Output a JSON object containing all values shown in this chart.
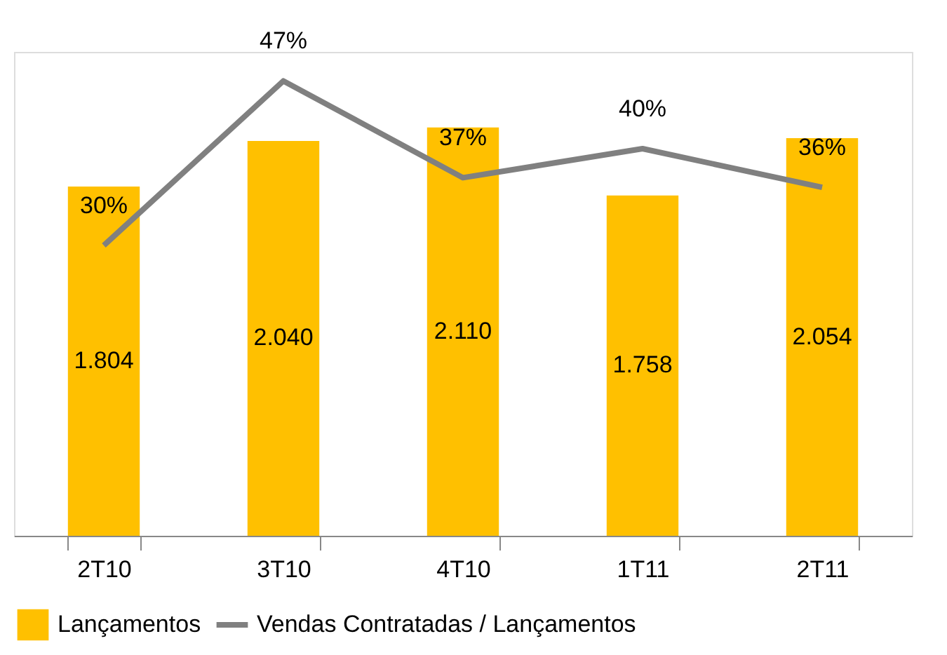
{
  "chart_data": {
    "type": "bar",
    "categories": [
      "2T10",
      "3T10",
      "4T10",
      "1T11",
      "2T11"
    ],
    "series": [
      {
        "name": "Lançamentos",
        "color": "#ffc000",
        "values": [
          1804,
          2040,
          2110,
          1758,
          2054
        ],
        "value_labels": [
          "1.804",
          "2.040",
          "2.110",
          "1.758",
          "2.054"
        ]
      },
      {
        "name": "Vendas Contratadas / Lançamentos",
        "type": "line",
        "axis": "y2",
        "color": "#808080",
        "values": [
          30,
          47,
          37,
          40,
          36
        ],
        "value_labels": [
          "30%",
          "47%",
          "37%",
          "40%",
          "36%"
        ]
      }
    ],
    "ylim": [
      0,
      2500
    ],
    "y2lim": [
      0,
      50
    ],
    "tick_labels": "x",
    "grid": false,
    "legend": "bottom",
    "marker": "none"
  }
}
